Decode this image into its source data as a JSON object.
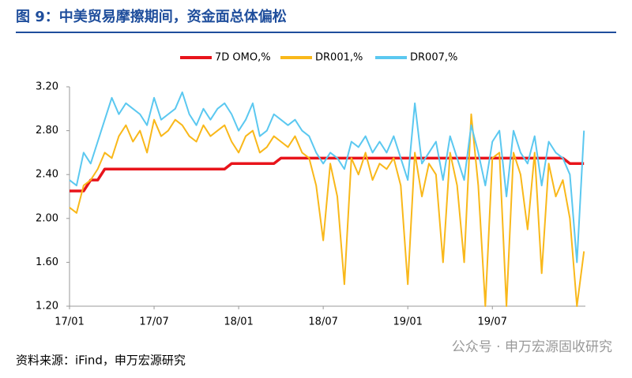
{
  "chart_data": {
    "type": "line",
    "title": "图 9：中美贸易摩擦期间，资金面总体偏松",
    "source": "资料来源：iFind，申万宏源研究",
    "watermark": "公众号 · 申万宏源固收研究",
    "x": [
      0,
      0.5,
      1,
      1.5,
      2,
      2.5,
      3,
      3.5,
      4,
      4.5,
      5,
      5.5,
      6,
      6.5,
      7,
      7.5,
      8,
      8.5,
      9,
      9.5,
      10,
      10.5,
      11,
      11.5,
      12,
      12.5,
      13,
      13.5,
      14,
      14.5,
      15,
      15.5,
      16,
      16.5,
      17,
      17.5,
      18,
      18.5,
      19,
      19.5,
      20,
      20.5,
      21,
      21.5,
      22,
      22.5,
      23,
      23.5,
      24,
      24.5,
      25,
      25.5,
      26,
      26.5,
      27,
      27.5,
      28,
      28.5,
      29,
      29.5,
      30,
      30.5,
      31,
      31.5,
      32,
      32.5,
      33,
      33.5,
      34,
      34.5,
      35,
      35.5,
      36,
      36.5
    ],
    "series": [
      {
        "name": "7D OMO,%",
        "color": "#e8141b",
        "width": 3.5,
        "values": [
          2.25,
          2.25,
          2.25,
          2.35,
          2.35,
          2.45,
          2.45,
          2.45,
          2.45,
          2.45,
          2.45,
          2.45,
          2.45,
          2.45,
          2.45,
          2.45,
          2.45,
          2.45,
          2.45,
          2.45,
          2.45,
          2.45,
          2.45,
          2.5,
          2.5,
          2.5,
          2.5,
          2.5,
          2.5,
          2.5,
          2.55,
          2.55,
          2.55,
          2.55,
          2.55,
          2.55,
          2.55,
          2.55,
          2.55,
          2.55,
          2.55,
          2.55,
          2.55,
          2.55,
          2.55,
          2.55,
          2.55,
          2.55,
          2.55,
          2.55,
          2.55,
          2.55,
          2.55,
          2.55,
          2.55,
          2.55,
          2.55,
          2.55,
          2.55,
          2.55,
          2.55,
          2.55,
          2.55,
          2.55,
          2.55,
          2.55,
          2.55,
          2.55,
          2.55,
          2.55,
          2.55,
          2.5,
          2.5,
          2.5
        ]
      },
      {
        "name": "DR001,%",
        "color": "#f9b81a",
        "width": 2,
        "values": [
          2.1,
          2.05,
          2.3,
          2.35,
          2.45,
          2.6,
          2.55,
          2.75,
          2.85,
          2.7,
          2.8,
          2.6,
          2.9,
          2.75,
          2.8,
          2.9,
          2.85,
          2.75,
          2.7,
          2.85,
          2.75,
          2.8,
          2.85,
          2.7,
          2.6,
          2.75,
          2.8,
          2.6,
          2.65,
          2.75,
          2.7,
          2.65,
          2.75,
          2.6,
          2.55,
          2.3,
          1.8,
          2.5,
          2.2,
          1.4,
          2.55,
          2.4,
          2.6,
          2.35,
          2.5,
          2.45,
          2.55,
          2.3,
          1.4,
          2.6,
          2.2,
          2.5,
          2.4,
          1.6,
          2.6,
          2.3,
          1.6,
          2.95,
          2.3,
          1.2,
          2.55,
          2.6,
          1.2,
          2.6,
          2.4,
          1.9,
          2.6,
          1.5,
          2.5,
          2.2,
          2.35,
          2.0,
          1.2,
          1.7
        ]
      },
      {
        "name": "DR007,%",
        "color": "#5bc8f0",
        "width": 2,
        "values": [
          2.35,
          2.3,
          2.6,
          2.5,
          2.7,
          2.9,
          3.1,
          2.95,
          3.05,
          3.0,
          2.95,
          2.85,
          3.1,
          2.9,
          2.95,
          3.0,
          3.15,
          2.95,
          2.85,
          3.0,
          2.9,
          3.0,
          3.05,
          2.95,
          2.8,
          2.9,
          3.05,
          2.75,
          2.8,
          2.95,
          2.9,
          2.85,
          2.9,
          2.8,
          2.75,
          2.6,
          2.5,
          2.6,
          2.55,
          2.45,
          2.7,
          2.65,
          2.75,
          2.6,
          2.7,
          2.6,
          2.75,
          2.55,
          2.35,
          3.05,
          2.5,
          2.6,
          2.7,
          2.35,
          2.75,
          2.55,
          2.35,
          2.85,
          2.6,
          2.3,
          2.7,
          2.8,
          2.2,
          2.8,
          2.6,
          2.5,
          2.75,
          2.3,
          2.7,
          2.6,
          2.55,
          2.4,
          1.6,
          2.8
        ]
      }
    ],
    "xlim": [
      0,
      36.6
    ],
    "xticks": [
      {
        "value": 0,
        "label": "17/01"
      },
      {
        "value": 6,
        "label": "17/07"
      },
      {
        "value": 12,
        "label": "18/01"
      },
      {
        "value": 18,
        "label": "18/07"
      },
      {
        "value": 24,
        "label": "19/01"
      },
      {
        "value": 30,
        "label": "19/07"
      }
    ],
    "ylim": [
      1.2,
      3.2
    ],
    "yticks": [
      {
        "value": 1.2,
        "label": "1.20"
      },
      {
        "value": 1.6,
        "label": "1.60"
      },
      {
        "value": 2.0,
        "label": "2.00"
      },
      {
        "value": 2.4,
        "label": "2.40"
      },
      {
        "value": 2.8,
        "label": "2.80"
      },
      {
        "value": 3.2,
        "label": "3.20"
      }
    ],
    "grid": false,
    "legend": "top"
  }
}
